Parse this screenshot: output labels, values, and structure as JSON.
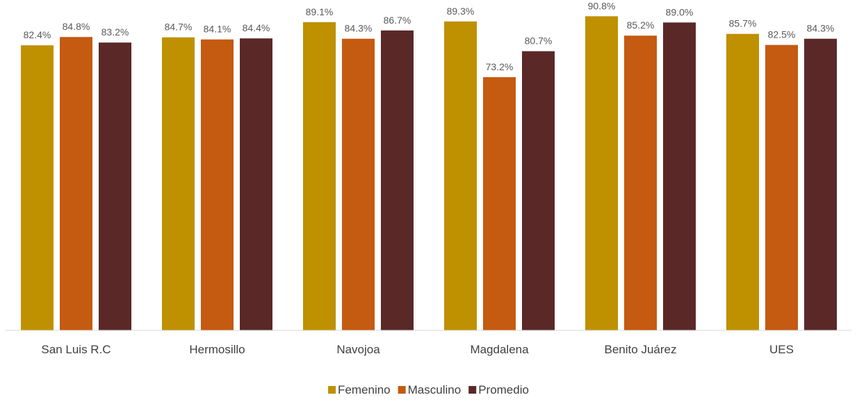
{
  "chart_data": {
    "type": "bar",
    "categories": [
      "San Luis R.C",
      "Hermosillo",
      "Navojoa",
      "Magdalena",
      "Benito Juárez",
      "UES"
    ],
    "series": [
      {
        "name": "Femenino",
        "values": [
          82.4,
          84.7,
          89.1,
          89.3,
          90.8,
          85.7
        ],
        "labels": [
          "82.4%",
          "84.7%",
          "89.1%",
          "89.3%",
          "90.8%",
          "85.7%"
        ],
        "color": "#BF9000"
      },
      {
        "name": "Masculino",
        "values": [
          84.8,
          84.1,
          84.3,
          73.2,
          85.2,
          82.5
        ],
        "labels": [
          "84.8%",
          "84.1%",
          "84.3%",
          "73.2%",
          "85.2%",
          "82.5%"
        ],
        "color": "#C55A11"
      },
      {
        "name": "Promedio",
        "values": [
          83.2,
          84.4,
          86.7,
          80.7,
          89.0,
          84.3
        ],
        "labels": [
          "83.2%",
          "84.4%",
          "86.7%",
          "80.7%",
          "89.0%",
          "84.3%"
        ],
        "color": "#5B2828"
      }
    ],
    "ylim": [
      0,
      95.5
    ],
    "grid": false,
    "legend_position": "bottom-center",
    "axis_color": "#D9D9D9"
  }
}
